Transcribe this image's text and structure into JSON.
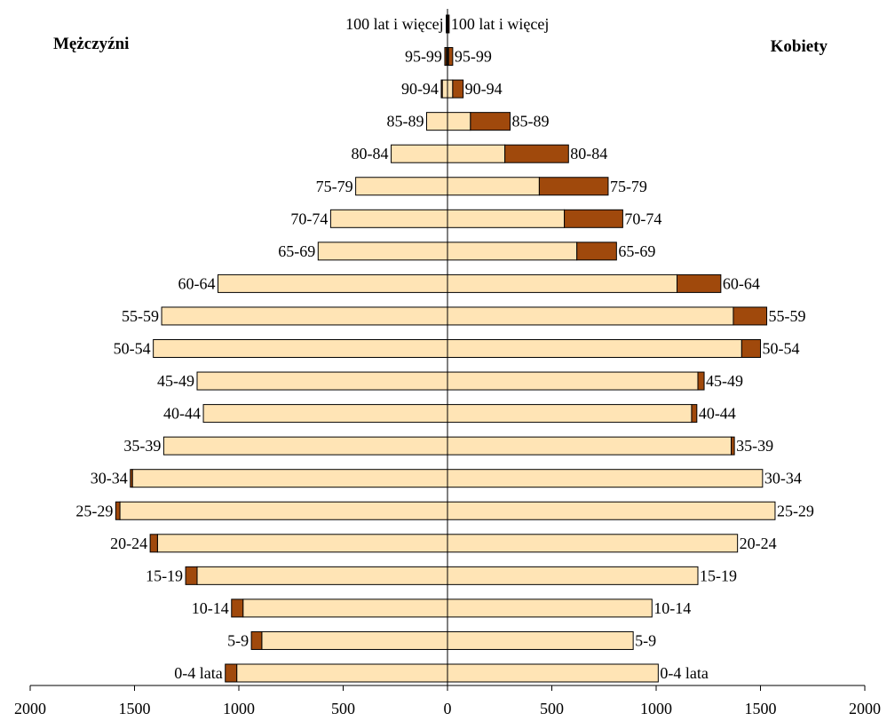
{
  "chart_data": {
    "type": "bar",
    "orientation": "horizontal",
    "layout": "population-pyramid",
    "left_title": "Mężczyźni",
    "right_title": "Kobiety",
    "xlim": [
      -2000,
      2000
    ],
    "x_ticks": [
      -2000,
      -1500,
      -1000,
      -500,
      0,
      500,
      1000,
      1500,
      2000
    ],
    "x_tick_labels": [
      "2000",
      "1500",
      "1000",
      "500",
      "0",
      "500",
      "1000",
      "1500",
      "2000"
    ],
    "categories": [
      "100 lat i więcej",
      "95-99",
      "90-94",
      "85-89",
      "80-84",
      "75-79",
      "70-74",
      "65-69",
      "60-64",
      "55-59",
      "50-54",
      "45-49",
      "40-44",
      "35-39",
      "30-34",
      "25-29",
      "20-24",
      "15-19",
      "10-14",
      "5-9",
      "0-4 lata"
    ],
    "colors": {
      "inner": "#FFE4B5",
      "outer": "#A0490C",
      "outline": "#000000"
    },
    "series": [
      {
        "side": "left",
        "segment": "inner",
        "values": [
          3,
          5,
          25,
          100,
          270,
          440,
          560,
          620,
          1100,
          1370,
          1410,
          1200,
          1170,
          1360,
          1510,
          1570,
          1390,
          1200,
          980,
          890,
          1010
        ]
      },
      {
        "side": "left",
        "segment": "outer",
        "values": [
          3,
          8,
          5,
          0,
          0,
          0,
          0,
          0,
          0,
          0,
          0,
          0,
          0,
          0,
          10,
          20,
          35,
          55,
          55,
          50,
          55
        ]
      },
      {
        "side": "right",
        "segment": "inner",
        "values": [
          3,
          5,
          25,
          110,
          275,
          440,
          560,
          620,
          1100,
          1370,
          1410,
          1200,
          1170,
          1360,
          1510,
          1570,
          1390,
          1200,
          980,
          890,
          1010
        ]
      },
      {
        "side": "right",
        "segment": "outer",
        "values": [
          5,
          20,
          50,
          190,
          305,
          330,
          280,
          190,
          210,
          160,
          90,
          30,
          25,
          15,
          0,
          0,
          0,
          0,
          0,
          0,
          0
        ]
      }
    ]
  }
}
